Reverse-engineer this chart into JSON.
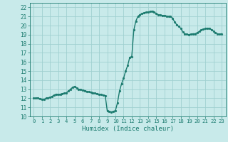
{
  "line_color": "#1a7a6e",
  "bg_color": "#c8eaea",
  "grid_color": "#a0d0d0",
  "tick_color": "#1a7a6e",
  "xlabel": "Humidex (Indice chaleur)",
  "ylim": [
    10,
    22.5
  ],
  "xlim": [
    -0.5,
    23.5
  ],
  "yticks": [
    10,
    11,
    12,
    13,
    14,
    15,
    16,
    17,
    18,
    19,
    20,
    21,
    22
  ],
  "xticks": [
    0,
    1,
    2,
    3,
    4,
    5,
    6,
    7,
    8,
    9,
    10,
    11,
    12,
    13,
    14,
    15,
    16,
    17,
    18,
    19,
    20,
    21,
    22,
    23
  ],
  "x_vals": [
    0,
    0.25,
    0.5,
    0.75,
    1.0,
    1.25,
    1.5,
    1.75,
    2.0,
    2.25,
    2.5,
    2.75,
    3.0,
    3.25,
    3.5,
    3.75,
    4.0,
    4.25,
    4.5,
    4.75,
    5.0,
    5.25,
    5.5,
    5.75,
    6.0,
    6.25,
    6.5,
    6.75,
    7.0,
    7.25,
    7.5,
    7.75,
    8.0,
    8.25,
    8.5,
    8.75,
    9.0,
    9.25,
    9.5,
    9.75,
    10.0,
    10.25,
    10.5,
    10.75,
    11.0,
    11.25,
    11.5,
    11.75,
    12.0,
    12.25,
    12.5,
    12.75,
    13.0,
    13.25,
    13.5,
    13.75,
    14.0,
    14.25,
    14.5,
    14.75,
    15.0,
    15.25,
    15.5,
    15.75,
    16.0,
    16.25,
    16.5,
    16.75,
    17.0,
    17.25,
    17.5,
    17.75,
    18.0,
    18.25,
    18.5,
    18.75,
    19.0,
    19.25,
    19.5,
    19.75,
    20.0,
    20.25,
    20.5,
    20.75,
    21.0,
    21.25,
    21.5,
    21.75,
    22.0,
    22.25,
    22.5,
    22.75,
    23.0
  ],
  "y_vals": [
    12.0,
    12.0,
    12.05,
    11.95,
    11.9,
    11.85,
    12.0,
    12.05,
    12.1,
    12.2,
    12.35,
    12.45,
    12.4,
    12.45,
    12.5,
    12.55,
    12.6,
    12.8,
    13.0,
    13.2,
    13.3,
    13.15,
    13.0,
    12.95,
    12.9,
    12.85,
    12.75,
    12.7,
    12.65,
    12.6,
    12.55,
    12.5,
    12.45,
    12.4,
    12.35,
    12.3,
    10.6,
    10.55,
    10.5,
    10.55,
    10.65,
    11.5,
    12.8,
    13.6,
    14.2,
    15.0,
    15.6,
    16.5,
    16.6,
    19.5,
    20.5,
    21.0,
    21.2,
    21.3,
    21.4,
    21.45,
    21.5,
    21.55,
    21.6,
    21.5,
    21.3,
    21.2,
    21.15,
    21.1,
    21.1,
    21.05,
    21.0,
    21.0,
    20.8,
    20.4,
    20.1,
    19.9,
    19.7,
    19.3,
    19.1,
    19.05,
    19.0,
    19.05,
    19.1,
    19.1,
    19.2,
    19.35,
    19.5,
    19.6,
    19.65,
    19.7,
    19.7,
    19.55,
    19.4,
    19.2,
    19.1,
    19.05,
    19.1
  ],
  "marker_size": 2.0,
  "line_width": 1.0
}
